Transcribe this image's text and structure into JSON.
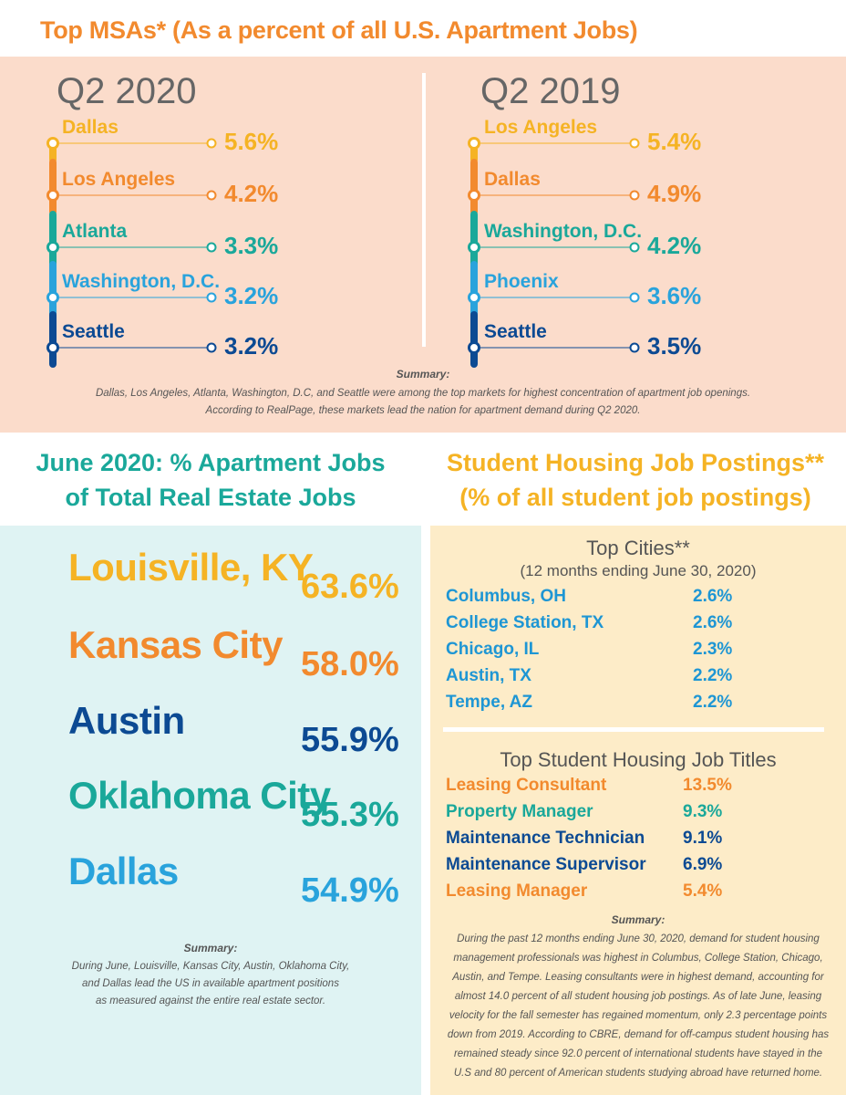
{
  "main_title": "Top MSAs* (As a percent of all U.S. Apartment Jobs)",
  "colors": {
    "orange": "#f28a2e",
    "yellow": "#f5b324",
    "teal": "#1aa89a",
    "light_blue": "#29a3dc",
    "dark_blue": "#0c4a93",
    "top_bg": "#fbdccb",
    "left_bg": "#dff3f3",
    "right_bg": "#fdecc8"
  },
  "chart_data": [
    {
      "type": "table",
      "title": "Q2 2020",
      "categories": [
        "Dallas",
        "Los Angeles",
        "Atlanta",
        "Washington, D.C.",
        "Seattle"
      ],
      "values": [
        5.6,
        4.2,
        3.3,
        3.2,
        3.2
      ],
      "value_labels": [
        "5.6%",
        "4.2%",
        "3.3%",
        "3.2%",
        "3.2%"
      ],
      "colors": [
        "#f5b324",
        "#f28a2e",
        "#1aa89a",
        "#29a3dc",
        "#0c4a93"
      ]
    },
    {
      "type": "table",
      "title": "Q2 2019",
      "categories": [
        "Los Angeles",
        "Dallas",
        "Washington, D.C.",
        "Phoenix",
        "Seattle"
      ],
      "values": [
        5.4,
        4.9,
        4.2,
        3.6,
        3.5
      ],
      "value_labels": [
        "5.4%",
        "4.9%",
        "4.2%",
        "3.6%",
        "3.5%"
      ],
      "colors": [
        "#f5b324",
        "#f28a2e",
        "#1aa89a",
        "#29a3dc",
        "#0c4a93"
      ]
    },
    {
      "type": "table",
      "title": "June 2020: % Apartment Jobs of Total Real Estate Jobs",
      "categories": [
        "Louisville, KY",
        "Kansas City",
        "Austin",
        "Oklahoma City",
        "Dallas"
      ],
      "values": [
        63.6,
        58.0,
        55.9,
        55.3,
        54.9
      ],
      "value_labels": [
        "63.6%",
        "58.0%",
        "55.9%",
        "55.3%",
        "54.9%"
      ],
      "colors": [
        "#f5b324",
        "#f28a2e",
        "#0c4a93",
        "#1aa89a",
        "#29a3dc"
      ]
    },
    {
      "type": "table",
      "title": "Top Cities**",
      "subtitle": "(12 months ending June 30, 2020)",
      "categories": [
        "Columbus, OH",
        "College Station, TX",
        "Chicago, IL",
        "Austin, TX",
        "Tempe, AZ"
      ],
      "values": [
        2.6,
        2.6,
        2.3,
        2.2,
        2.2
      ],
      "value_labels": [
        "2.6%",
        "2.6%",
        "2.3%",
        "2.2%",
        "2.2%"
      ]
    },
    {
      "type": "table",
      "title": "Top Student Housing Job Titles",
      "categories": [
        "Leasing Consultant",
        "Property Manager",
        "Maintenance Technician",
        "Maintenance Supervisor",
        "Leasing Manager"
      ],
      "values": [
        13.5,
        9.3,
        9.1,
        6.9,
        5.4
      ],
      "value_labels": [
        "13.5%",
        "9.3%",
        "9.1%",
        "6.9%",
        "5.4%"
      ],
      "colors": [
        "#f28a2e",
        "#1aa89a",
        "#0c4a93",
        "#0c4a93",
        "#f28a2e"
      ]
    }
  ],
  "summary1": {
    "title": "Summary:",
    "line1": "Dallas, Los Angeles, Atlanta, Washington, D.C, and Seattle were among the top markets for highest concentration of apartment job openings.",
    "line2": "According to RealPage, these markets lead the nation for apartment demand during Q2 2020."
  },
  "section2": {
    "title_line1": "June 2020: % Apartment Jobs",
    "title_line2": "of Total Real Estate Jobs"
  },
  "section3": {
    "title_line1": "Student Housing Job Postings**",
    "title_line2": "(% of all student job postings)"
  },
  "summary2": {
    "title": "Summary:",
    "line1": "During June, Louisville, Kansas City, Austin, Oklahoma City,",
    "line2": "and Dallas lead the US in available apartment positions",
    "line3": "as measured against the entire real estate sector."
  },
  "summary3": {
    "title": "Summary:",
    "lines": [
      "During the past 12 months ending June 30, 2020, demand for student housing",
      "management professionals was highest in Columbus, College Station, Chicago,",
      "Austin, and Tempe. Leasing consultants were in highest demand, accounting for",
      "almost 14.0 percent of all student housing job postings. As of late June, leasing",
      "velocity for the fall semester has regained momentum, only 2.3 percentage points",
      "down from 2019. According to CBRE, demand for off-campus student housing has",
      "remained steady since 92.0 percent of international students have stayed in the",
      "U.S and 80 percent of American students studying abroad have returned home."
    ]
  }
}
